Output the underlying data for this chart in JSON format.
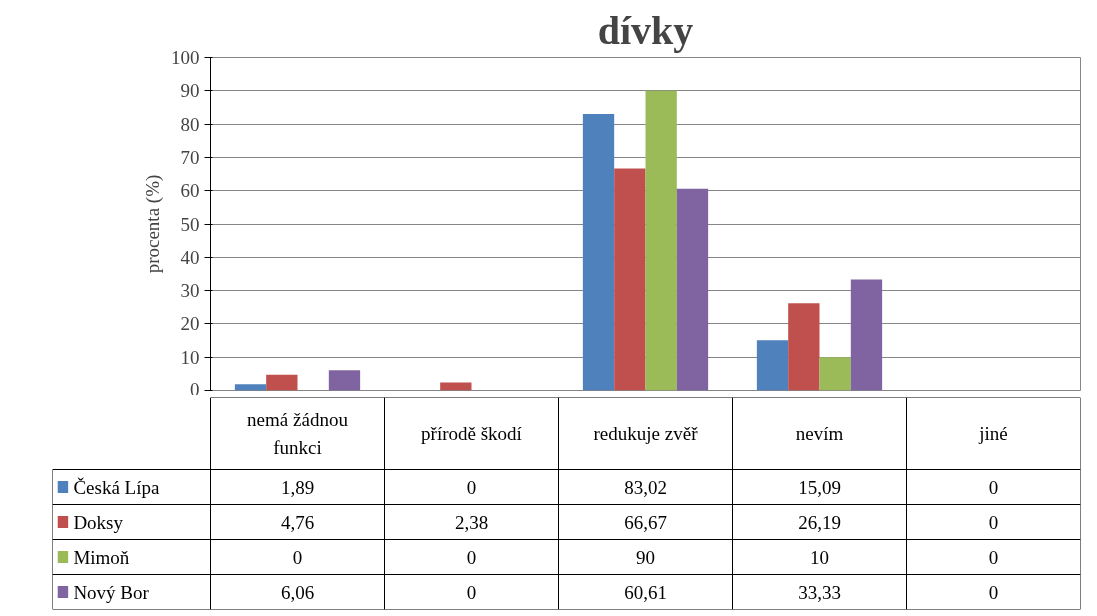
{
  "chart_data": {
    "type": "bar",
    "title": "dívky",
    "ylabel": "procenta (%)",
    "categories": [
      "nemá žádnou funkci",
      "přírodě škodí",
      "redukuje zvěř",
      "nevím",
      "jiné"
    ],
    "series": [
      {
        "name": "Česká Lípa",
        "color": "#4f81bd",
        "values": [
          1.89,
          0,
          83.02,
          15.09,
          0
        ],
        "value_labels": [
          "1,89",
          "0",
          "83,02",
          "15,09",
          "0"
        ]
      },
      {
        "name": "Doksy",
        "color": "#c0504d",
        "values": [
          4.76,
          2.38,
          66.67,
          26.19,
          0
        ],
        "value_labels": [
          "4,76",
          "2,38",
          "66,67",
          "26,19",
          "0"
        ]
      },
      {
        "name": "Mimoň",
        "color": "#9bbb59",
        "values": [
          0,
          0,
          90,
          10,
          0
        ],
        "value_labels": [
          "0",
          "0",
          "90",
          "10",
          "0"
        ]
      },
      {
        "name": "Nový Bor",
        "color": "#8064a2",
        "values": [
          6.06,
          0,
          60.61,
          33.33,
          0
        ],
        "value_labels": [
          "6,06",
          "0",
          "60,61",
          "33,33",
          "0"
        ]
      }
    ],
    "ylim": [
      0,
      100
    ],
    "yticks": [
      0,
      10,
      20,
      30,
      40,
      50,
      60,
      70,
      80,
      90,
      100
    ],
    "grid": "y",
    "legend": "bottom left"
  }
}
